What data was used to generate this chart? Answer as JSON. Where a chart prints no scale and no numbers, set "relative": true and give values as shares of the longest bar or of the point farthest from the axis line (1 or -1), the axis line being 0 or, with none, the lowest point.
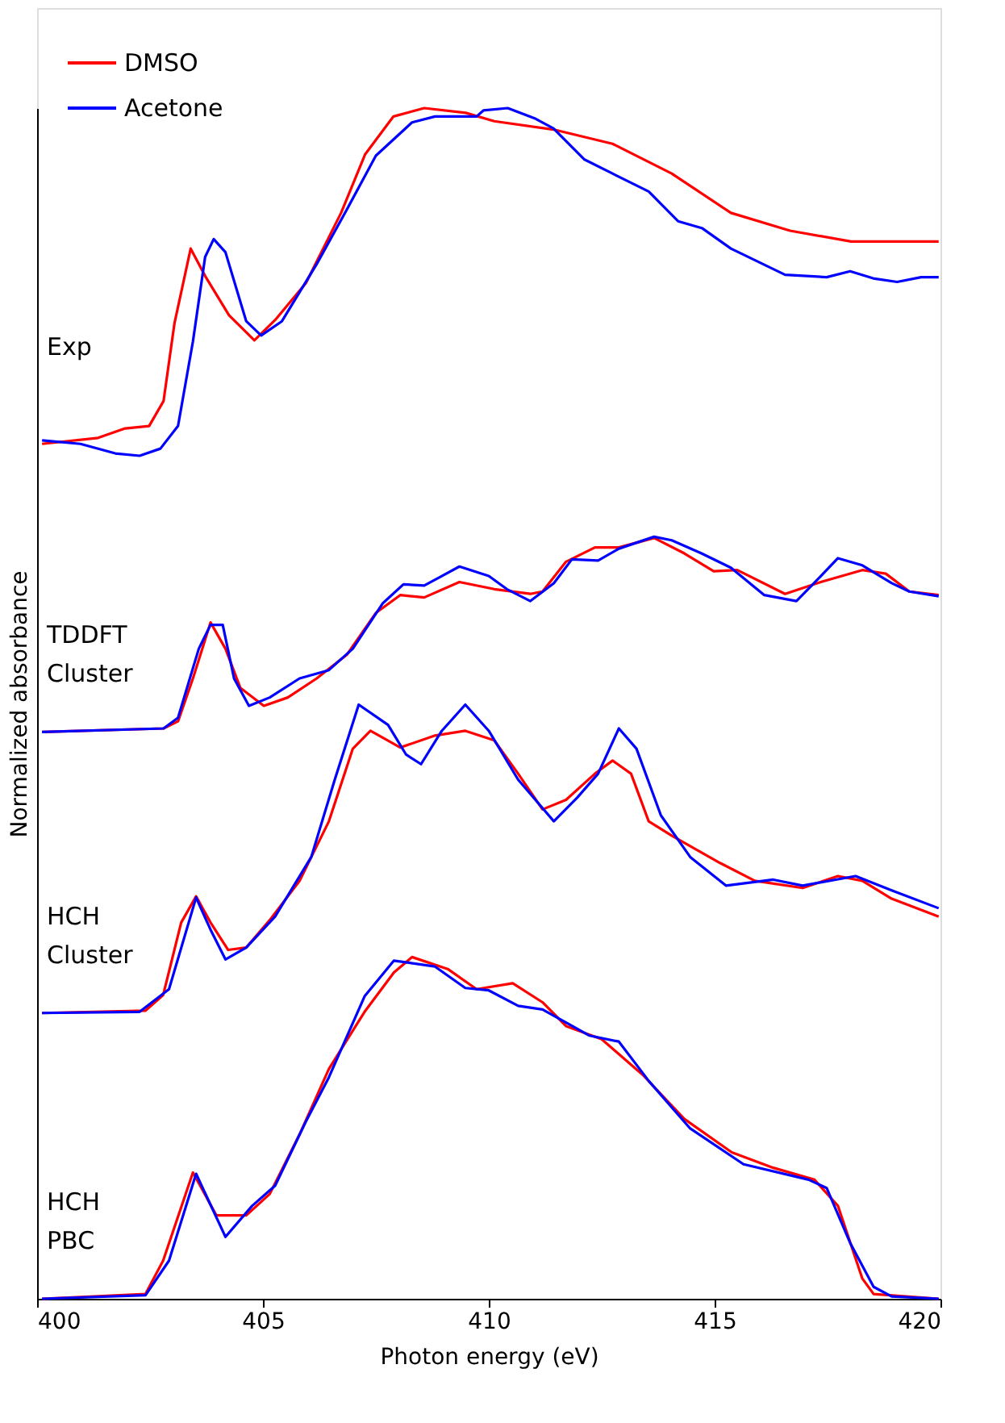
{
  "chart_data": {
    "type": "line",
    "relative": true,
    "xlabel": "Photon energy (eV)",
    "ylabel": "Normalized absorbance",
    "xlim": [
      400,
      420
    ],
    "xticks": [
      400,
      405,
      410,
      415,
      420
    ],
    "grid": false,
    "legend": "top left",
    "marker": "none",
    "line_style": "solid",
    "annotations": [
      "Exp",
      "TDDFT\nCluster",
      "HCH\nCluster",
      "HCH\nPBC"
    ],
    "series": [
      {
        "name": "DMSO",
        "color": "#ff0000",
        "x": [
          400.11,
          401.35,
          401.95,
          402.48,
          402.8,
          403.04,
          403.4,
          403.72,
          404.25,
          404.81,
          405.27,
          405.95,
          406.73,
          407.26,
          407.89,
          408.57,
          409.49,
          410.12,
          411.43,
          412.74,
          414.05,
          415.36,
          416.67,
          418.02,
          419.96
        ],
        "values": [
          0.718,
          0.723,
          0.731,
          0.733,
          0.754,
          0.819,
          0.882,
          0.859,
          0.826,
          0.805,
          0.822,
          0.853,
          0.912,
          0.961,
          0.993,
          1.0,
          0.996,
          0.989,
          0.982,
          0.97,
          0.945,
          0.912,
          0.897,
          0.888,
          0.888
        ]
      },
      {
        "name": "Acetone",
        "color": "#0000ff",
        "x": [
          400.11,
          400.96,
          401.73,
          402.27,
          402.73,
          403.12,
          403.45,
          403.72,
          403.91,
          404.17,
          404.63,
          404.96,
          405.42,
          406.19,
          406.86,
          407.5,
          408.3,
          408.81,
          409.73,
          409.88,
          410.42,
          411.04,
          411.43,
          412.11,
          412.74,
          413.54,
          414.19,
          414.73,
          415.36,
          416.56,
          417.48,
          418.0,
          418.51,
          419.04,
          419.57,
          419.96
        ],
        "values": [
          0.721,
          0.718,
          0.71,
          0.708,
          0.714,
          0.733,
          0.804,
          0.875,
          0.89,
          0.879,
          0.821,
          0.809,
          0.821,
          0.869,
          0.915,
          0.96,
          0.988,
          0.993,
          0.993,
          0.998,
          1.0,
          0.991,
          0.983,
          0.957,
          0.945,
          0.93,
          0.905,
          0.899,
          0.882,
          0.86,
          0.858,
          0.863,
          0.857,
          0.854,
          0.858,
          0.858
        ]
      },
      {
        "color": "#ff0000",
        "x": [
          400.11,
          402.8,
          403.12,
          403.45,
          403.84,
          404.17,
          404.5,
          405.02,
          405.55,
          406.19,
          406.86,
          407.5,
          408.04,
          408.57,
          409.35,
          410.12,
          410.92,
          411.19,
          411.71,
          412.35,
          412.88,
          413.66,
          414.33,
          414.98,
          415.5,
          416.56,
          417.35,
          418.27,
          418.79,
          419.31,
          419.96
        ],
        "values": [
          0.476,
          0.479,
          0.485,
          0.521,
          0.568,
          0.546,
          0.513,
          0.498,
          0.505,
          0.521,
          0.541,
          0.576,
          0.591,
          0.589,
          0.602,
          0.596,
          0.592,
          0.594,
          0.619,
          0.631,
          0.631,
          0.639,
          0.626,
          0.611,
          0.612,
          0.592,
          0.602,
          0.612,
          0.609,
          0.594,
          0.591
        ]
      },
      {
        "color": "#0000ff",
        "x": [
          400.11,
          402.8,
          403.12,
          403.58,
          403.84,
          404.11,
          404.36,
          404.69,
          405.15,
          405.81,
          406.46,
          406.99,
          407.65,
          408.11,
          408.57,
          408.96,
          409.35,
          410.0,
          410.4,
          410.92,
          411.44,
          411.84,
          412.42,
          412.88,
          413.66,
          414.05,
          414.71,
          415.36,
          416.1,
          416.81,
          417.2,
          417.73,
          418.27,
          418.92,
          419.31,
          419.96
        ],
        "values": [
          0.476,
          0.479,
          0.488,
          0.546,
          0.566,
          0.566,
          0.521,
          0.498,
          0.505,
          0.521,
          0.528,
          0.546,
          0.584,
          0.6,
          0.599,
          0.607,
          0.615,
          0.607,
          0.596,
          0.586,
          0.601,
          0.621,
          0.62,
          0.63,
          0.64,
          0.637,
          0.626,
          0.614,
          0.591,
          0.586,
          0.601,
          0.622,
          0.616,
          0.601,
          0.594,
          0.59
        ]
      },
      {
        "color": "#ff0000",
        "x": [
          400.11,
          402.4,
          402.79,
          403.19,
          403.52,
          403.84,
          404.23,
          404.63,
          405.15,
          405.81,
          406.46,
          406.99,
          407.38,
          408.04,
          408.81,
          409.48,
          410.12,
          410.65,
          411.19,
          411.71,
          412.35,
          412.74,
          413.15,
          413.54,
          414.05,
          415.12,
          415.89,
          416.95,
          417.73,
          418.27,
          418.92,
          419.96
        ],
        "values": [
          0.24,
          0.242,
          0.255,
          0.316,
          0.338,
          0.316,
          0.293,
          0.295,
          0.318,
          0.351,
          0.401,
          0.462,
          0.477,
          0.463,
          0.473,
          0.477,
          0.469,
          0.441,
          0.411,
          0.419,
          0.441,
          0.452,
          0.441,
          0.401,
          0.389,
          0.366,
          0.351,
          0.345,
          0.355,
          0.351,
          0.336,
          0.321
        ]
      },
      {
        "color": "#0000ff",
        "x": [
          400.11,
          402.27,
          402.92,
          403.52,
          403.84,
          404.17,
          404.63,
          405.27,
          406.07,
          406.59,
          407.12,
          407.77,
          408.17,
          408.5,
          408.96,
          409.48,
          410.0,
          410.65,
          411.44,
          411.96,
          412.42,
          412.88,
          413.27,
          413.81,
          414.46,
          415.25,
          416.3,
          416.95,
          418.12,
          418.92,
          419.96
        ],
        "values": [
          0.24,
          0.241,
          0.26,
          0.337,
          0.31,
          0.285,
          0.295,
          0.321,
          0.371,
          0.436,
          0.499,
          0.482,
          0.457,
          0.449,
          0.477,
          0.499,
          0.477,
          0.436,
          0.401,
          0.421,
          0.441,
          0.479,
          0.462,
          0.406,
          0.371,
          0.347,
          0.352,
          0.347,
          0.355,
          0.343,
          0.328
        ]
      },
      {
        "color": "#ff0000",
        "x": [
          400.11,
          402.4,
          402.79,
          403.45,
          403.97,
          404.63,
          405.15,
          405.81,
          406.46,
          407.25,
          407.9,
          408.3,
          409.09,
          409.73,
          410.53,
          411.19,
          411.71,
          412.5,
          413.41,
          414.33,
          415.38,
          416.3,
          417.21,
          417.73,
          418.27,
          418.52,
          419.96
        ],
        "values": [
          0.0,
          0.004,
          0.032,
          0.106,
          0.07,
          0.07,
          0.088,
          0.138,
          0.193,
          0.241,
          0.274,
          0.287,
          0.277,
          0.26,
          0.265,
          0.249,
          0.229,
          0.218,
          0.188,
          0.151,
          0.123,
          0.11,
          0.1,
          0.078,
          0.017,
          0.004,
          0.0
        ]
      },
      {
        "color": "#0000ff",
        "x": [
          400.11,
          402.4,
          402.92,
          403.52,
          404.17,
          404.76,
          405.27,
          405.94,
          406.46,
          407.25,
          407.9,
          408.81,
          409.48,
          410.0,
          410.65,
          411.19,
          412.23,
          412.88,
          413.54,
          414.46,
          415.64,
          417.08,
          417.48,
          418.0,
          418.52,
          418.92,
          419.96
        ],
        "values": [
          0.0,
          0.003,
          0.032,
          0.105,
          0.052,
          0.078,
          0.095,
          0.148,
          0.186,
          0.254,
          0.284,
          0.279,
          0.261,
          0.259,
          0.246,
          0.243,
          0.221,
          0.216,
          0.183,
          0.143,
          0.113,
          0.1,
          0.093,
          0.047,
          0.01,
          0.002,
          0.0
        ]
      }
    ]
  }
}
